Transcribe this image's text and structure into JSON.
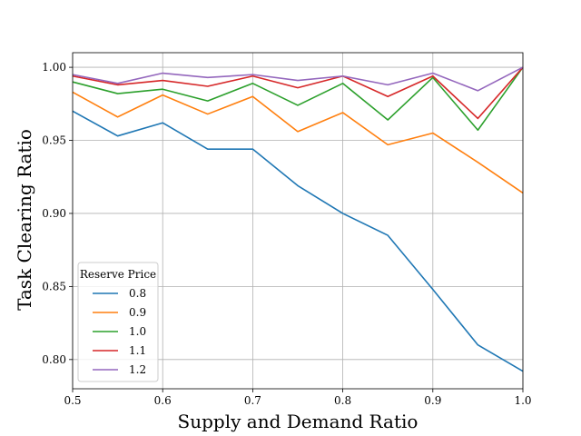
{
  "chart_data": {
    "type": "line",
    "xlabel": "Supply and Demand Ratio",
    "ylabel": "Task Clearing Ratio",
    "xlim": [
      0.5,
      1.0
    ],
    "ylim": [
      0.78,
      1.01
    ],
    "xticks": [
      0.5,
      0.6,
      0.7,
      0.8,
      0.9,
      1.0
    ],
    "xtick_labels": [
      "0.5",
      "0.6",
      "0.7",
      "0.8",
      "0.9",
      "1.0"
    ],
    "yticks": [
      0.8,
      0.85,
      0.9,
      0.95,
      1.0
    ],
    "ytick_labels": [
      "0.80",
      "0.85",
      "0.90",
      "0.95",
      "1.00"
    ],
    "grid": true,
    "legend": {
      "title": "Reserve Price",
      "placement": "lower-left"
    },
    "x": [
      0.5,
      0.55,
      0.6,
      0.65,
      0.7,
      0.75,
      0.8,
      0.85,
      0.9,
      0.95,
      1.0
    ],
    "series": [
      {
        "name": "0.8",
        "color": "#1f77b4",
        "values": [
          0.97,
          0.953,
          0.962,
          0.944,
          0.944,
          0.919,
          0.9,
          0.885,
          0.848,
          0.81,
          0.792
        ]
      },
      {
        "name": "0.9",
        "color": "#ff7f0e",
        "values": [
          0.983,
          0.966,
          0.981,
          0.968,
          0.98,
          0.956,
          0.969,
          0.947,
          0.955,
          0.935,
          0.914
        ]
      },
      {
        "name": "1.0",
        "color": "#2ca02c",
        "values": [
          0.99,
          0.982,
          0.985,
          0.977,
          0.989,
          0.974,
          0.989,
          0.964,
          0.993,
          0.957,
          1.0
        ]
      },
      {
        "name": "1.1",
        "color": "#d62728",
        "values": [
          0.994,
          0.988,
          0.991,
          0.987,
          0.994,
          0.986,
          0.994,
          0.98,
          0.994,
          0.965,
          1.0
        ]
      },
      {
        "name": "1.2",
        "color": "#9467bd",
        "values": [
          0.995,
          0.989,
          0.996,
          0.993,
          0.995,
          0.991,
          0.994,
          0.988,
          0.996,
          0.984,
          1.0
        ]
      }
    ]
  }
}
